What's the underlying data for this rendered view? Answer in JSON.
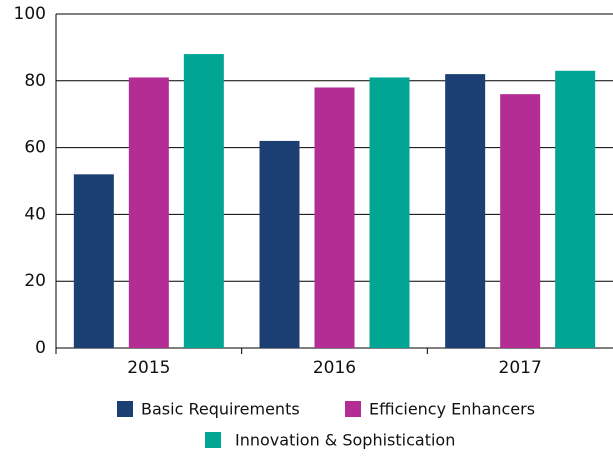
{
  "chart_data": {
    "type": "bar",
    "categories": [
      "2015",
      "2016",
      "2017"
    ],
    "series": [
      {
        "name": "Basic Requirements",
        "color": "#1b3f73",
        "values": [
          52,
          62,
          82
        ]
      },
      {
        "name": "Efficiency Enhancers",
        "color": "#b32d94",
        "values": [
          81,
          78,
          76
        ]
      },
      {
        "name": "Innovation & Sophistication",
        "color": "#00a693",
        "values": [
          88,
          81,
          83
        ]
      }
    ],
    "ylim": [
      0,
      100
    ],
    "yticks": [
      0,
      20,
      40,
      60,
      80,
      100
    ],
    "grid": true
  }
}
